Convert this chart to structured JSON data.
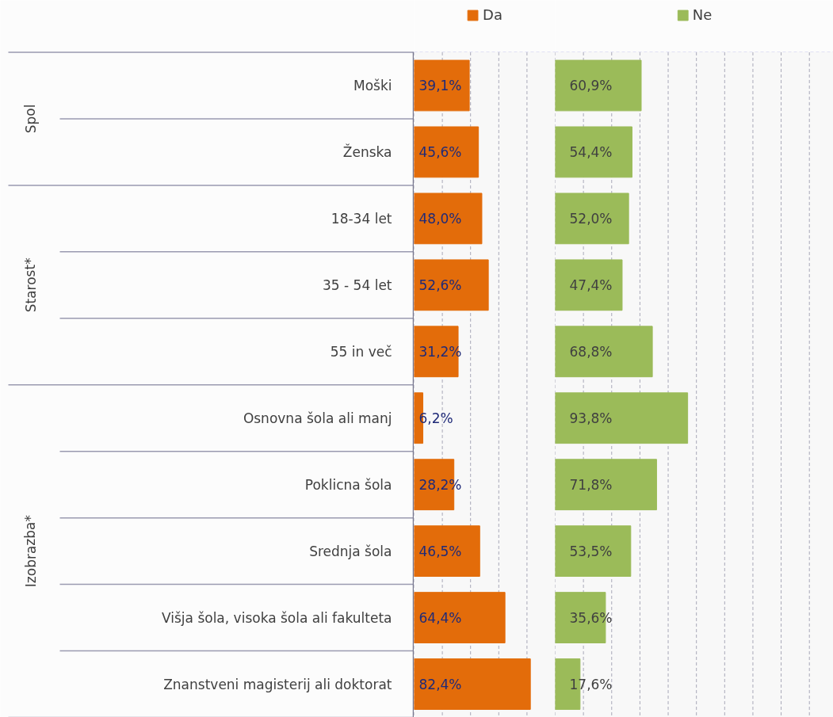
{
  "chart_data": [
    {
      "type": "bar",
      "orientation": "horizontal",
      "categories": [
        "Moški",
        "Ženska",
        "18-34 let",
        "35 - 54 let",
        "55 in več",
        "Osnovna šola ali manj",
        "Poklicna šola",
        "Srednja šola",
        "Višja šola, visoka šola ali fakulteta",
        "Znanstveni magisterij ali doktorat"
      ],
      "series": [
        {
          "name": "Da",
          "color": "#e36c0a",
          "values": [
            39.1,
            45.6,
            48.0,
            52.6,
            31.2,
            6.2,
            28.2,
            46.5,
            64.4,
            82.4
          ],
          "value_labels": [
            "39,1%",
            "45,6%",
            "48,0%",
            "52,6%",
            "31,2%",
            "6,2%",
            "28,2%",
            "46,5%",
            "64,4%",
            "82,4%"
          ]
        }
      ],
      "annotations": [
        "Spol",
        "Starost*",
        "Izobrazba*"
      ],
      "xlim": [
        0,
        100
      ],
      "xticks": [
        {
          "value": 0,
          "label": null
        },
        {
          "value": 20,
          "label": null
        },
        {
          "value": 40,
          "label": null
        },
        {
          "value": 60,
          "label": null
        },
        {
          "value": 80,
          "label": null
        },
        {
          "value": 100,
          "label": null
        }
      ],
      "grid": true,
      "legend": "top",
      "tick_labels": "y"
    },
    {
      "type": "bar",
      "orientation": "horizontal",
      "series": [
        {
          "name": "Ne",
          "color": "#9bbb59",
          "values": [
            60.9,
            54.4,
            52.0,
            47.4,
            68.8,
            93.8,
            71.8,
            53.5,
            35.6,
            17.6
          ],
          "value_labels": [
            "60,9%",
            "54,4%",
            "52,0%",
            "47,4%",
            "68,8%",
            "93,8%",
            "71,8%",
            "53,5%",
            "35,6%",
            "17,6%"
          ]
        }
      ],
      "xlim": [
        0,
        197
      ],
      "xticks": [
        {
          "value": 0,
          "label": null
        },
        {
          "value": 20,
          "label": null
        },
        {
          "value": 40,
          "label": null
        },
        {
          "value": 60,
          "label": null
        },
        {
          "value": 80,
          "label": null
        },
        {
          "value": 100,
          "label": null
        },
        {
          "value": 120,
          "label": null
        },
        {
          "value": 140,
          "label": null
        },
        {
          "value": 160,
          "label": null
        },
        {
          "value": 180,
          "label": null
        }
      ],
      "grid": true,
      "legend": "top",
      "tick_labels": false
    }
  ]
}
